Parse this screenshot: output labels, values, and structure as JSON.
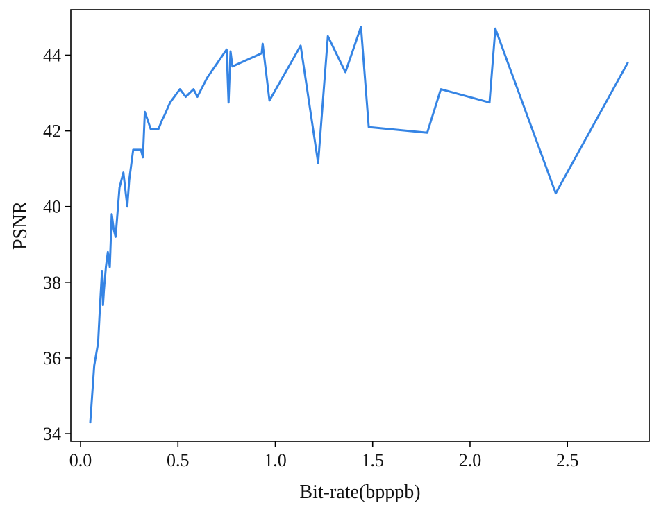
{
  "chart_data": {
    "type": "line",
    "title": "",
    "xlabel": "Bit-rate(bpppb)",
    "ylabel": "PSNR",
    "xlim": [
      -0.05,
      2.92
    ],
    "ylim": [
      33.8,
      45.2
    ],
    "xticks": [
      0.0,
      0.5,
      1.0,
      1.5,
      2.0,
      2.5
    ],
    "xtick_labels": [
      "0.0",
      "0.5",
      "1.0",
      "1.5",
      "2.0",
      "2.5"
    ],
    "yticks": [
      34,
      36,
      38,
      40,
      42,
      44
    ],
    "ytick_labels": [
      "34",
      "36",
      "38",
      "40",
      "42",
      "44"
    ],
    "grid": false,
    "legend": "none",
    "series": [
      {
        "color": "#3584e4",
        "x": [
          0.05,
          0.07,
          0.08,
          0.09,
          0.1,
          0.11,
          0.115,
          0.12,
          0.13,
          0.14,
          0.15,
          0.16,
          0.17,
          0.18,
          0.2,
          0.22,
          0.24,
          0.25,
          0.27,
          0.28,
          0.31,
          0.32,
          0.33,
          0.36,
          0.4,
          0.42,
          0.43,
          0.46,
          0.51,
          0.54,
          0.58,
          0.6,
          0.65,
          0.67,
          0.75,
          0.76,
          0.77,
          0.78,
          0.8,
          0.93,
          0.935,
          0.97,
          1.13,
          1.22,
          1.27,
          1.36,
          1.44,
          1.48,
          1.78,
          1.85,
          2.1,
          2.13,
          2.44,
          2.81
        ],
        "y": [
          34.3,
          35.8,
          36.1,
          36.4,
          37.4,
          38.3,
          37.4,
          37.8,
          38.4,
          38.8,
          38.4,
          39.8,
          39.4,
          39.2,
          40.5,
          40.9,
          40.0,
          40.7,
          41.5,
          41.5,
          41.5,
          41.3,
          42.5,
          42.05,
          42.05,
          42.3,
          42.4,
          42.75,
          43.1,
          42.9,
          43.1,
          42.9,
          43.4,
          43.55,
          44.15,
          42.75,
          44.1,
          43.7,
          43.75,
          44.05,
          44.3,
          42.8,
          44.25,
          41.15,
          44.5,
          43.55,
          44.75,
          42.1,
          41.95,
          43.1,
          42.75,
          44.7,
          40.35,
          43.8
        ]
      }
    ]
  }
}
